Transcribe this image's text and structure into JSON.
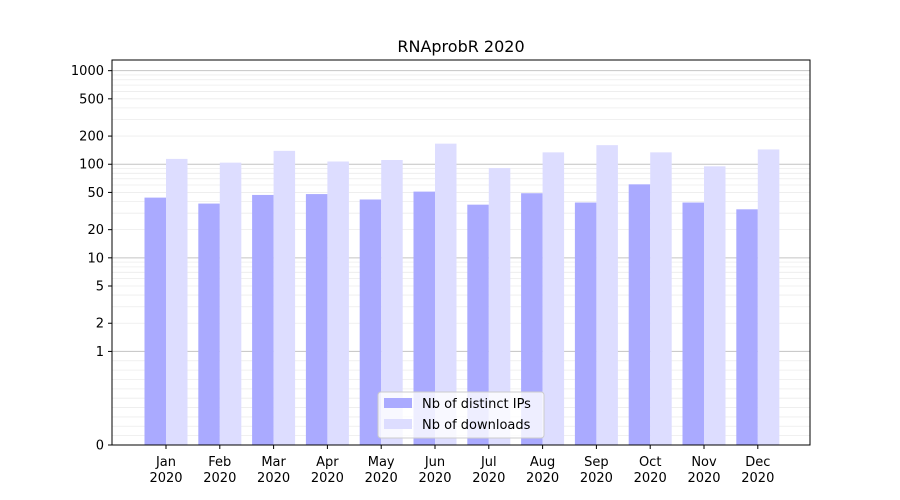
{
  "chart_data": {
    "type": "bar",
    "title": "RNAprobR 2020",
    "xlabel": "",
    "ylabel": "",
    "categories": [
      "Jan\n2020",
      "Feb\n2020",
      "Mar\n2020",
      "Apr\n2020",
      "May\n2020",
      "Jun\n2020",
      "Jul\n2020",
      "Aug\n2020",
      "Sep\n2020",
      "Oct\n2020",
      "Nov\n2020",
      "Dec\n2020"
    ],
    "series": [
      {
        "name": "Nb of distinct IPs",
        "color": "#aaaaff",
        "values": [
          44,
          38,
          47,
          48,
          42,
          51,
          37,
          49,
          39,
          61,
          39,
          33
        ]
      },
      {
        "name": "Nb of downloads",
        "color": "#ddddff",
        "values": [
          114,
          104,
          139,
          107,
          111,
          166,
          91,
          134,
          160,
          134,
          95,
          144
        ]
      }
    ],
    "yscale": "symlog",
    "ylim": [
      0,
      1300
    ],
    "yticks": [
      0,
      1,
      2,
      5,
      10,
      20,
      50,
      100,
      200,
      500,
      1000
    ],
    "ytick_labels": [
      "0",
      "1",
      "2",
      "5",
      "10",
      "20",
      "50",
      "100",
      "200",
      "500",
      "1000"
    ],
    "grid": true,
    "legend_position": "bottom-center"
  }
}
